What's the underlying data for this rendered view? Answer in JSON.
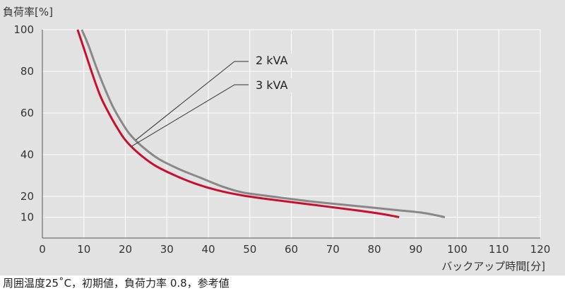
{
  "chart_data": {
    "type": "line",
    "xlabel": "バックアップ時間[分]",
    "ylabel": "負荷率[%]",
    "xlim": [
      0,
      120
    ],
    "ylim": [
      0,
      100
    ],
    "x_ticks": [
      "0",
      "10",
      "20",
      "30",
      "40",
      "50",
      "60",
      "70",
      "80",
      "90",
      "100",
      "110",
      "120"
    ],
    "y_ticks": [
      "10",
      "20",
      "40",
      "60",
      "80",
      "100"
    ],
    "grid": true,
    "series": [
      {
        "name": "2 kVA",
        "color": "#888888",
        "points": [
          [
            9.5,
            100
          ],
          [
            11,
            93
          ],
          [
            13,
            82
          ],
          [
            15,
            72
          ],
          [
            17,
            63
          ],
          [
            19,
            56
          ],
          [
            21,
            50
          ],
          [
            24,
            44
          ],
          [
            28,
            38
          ],
          [
            33,
            33
          ],
          [
            38,
            29
          ],
          [
            43,
            25
          ],
          [
            48,
            22
          ],
          [
            55,
            20
          ],
          [
            65,
            17.5
          ],
          [
            75,
            15.5
          ],
          [
            85,
            13.5
          ],
          [
            92,
            12
          ],
          [
            97,
            10
          ]
        ]
      },
      {
        "name": "3 kVA",
        "color": "#c8102e",
        "points": [
          [
            8.5,
            100
          ],
          [
            10,
            91
          ],
          [
            12,
            79
          ],
          [
            14,
            68
          ],
          [
            16,
            60
          ],
          [
            18,
            53
          ],
          [
            20,
            47
          ],
          [
            23,
            41
          ],
          [
            27,
            35
          ],
          [
            32,
            30
          ],
          [
            37,
            26
          ],
          [
            42,
            23
          ],
          [
            48,
            20.5
          ],
          [
            55,
            18.5
          ],
          [
            65,
            16
          ],
          [
            75,
            13.5
          ],
          [
            82,
            11.5
          ],
          [
            86,
            10
          ]
        ]
      }
    ],
    "legend": {
      "entries": [
        "2 kVA",
        "3 kVA"
      ]
    }
  },
  "caption": "周囲温度25˚C，初期値，負荷力率 0.8，参考値",
  "colors": {
    "background": "#e2e2e2",
    "grid": "#ffffff",
    "axis": "#555555"
  }
}
